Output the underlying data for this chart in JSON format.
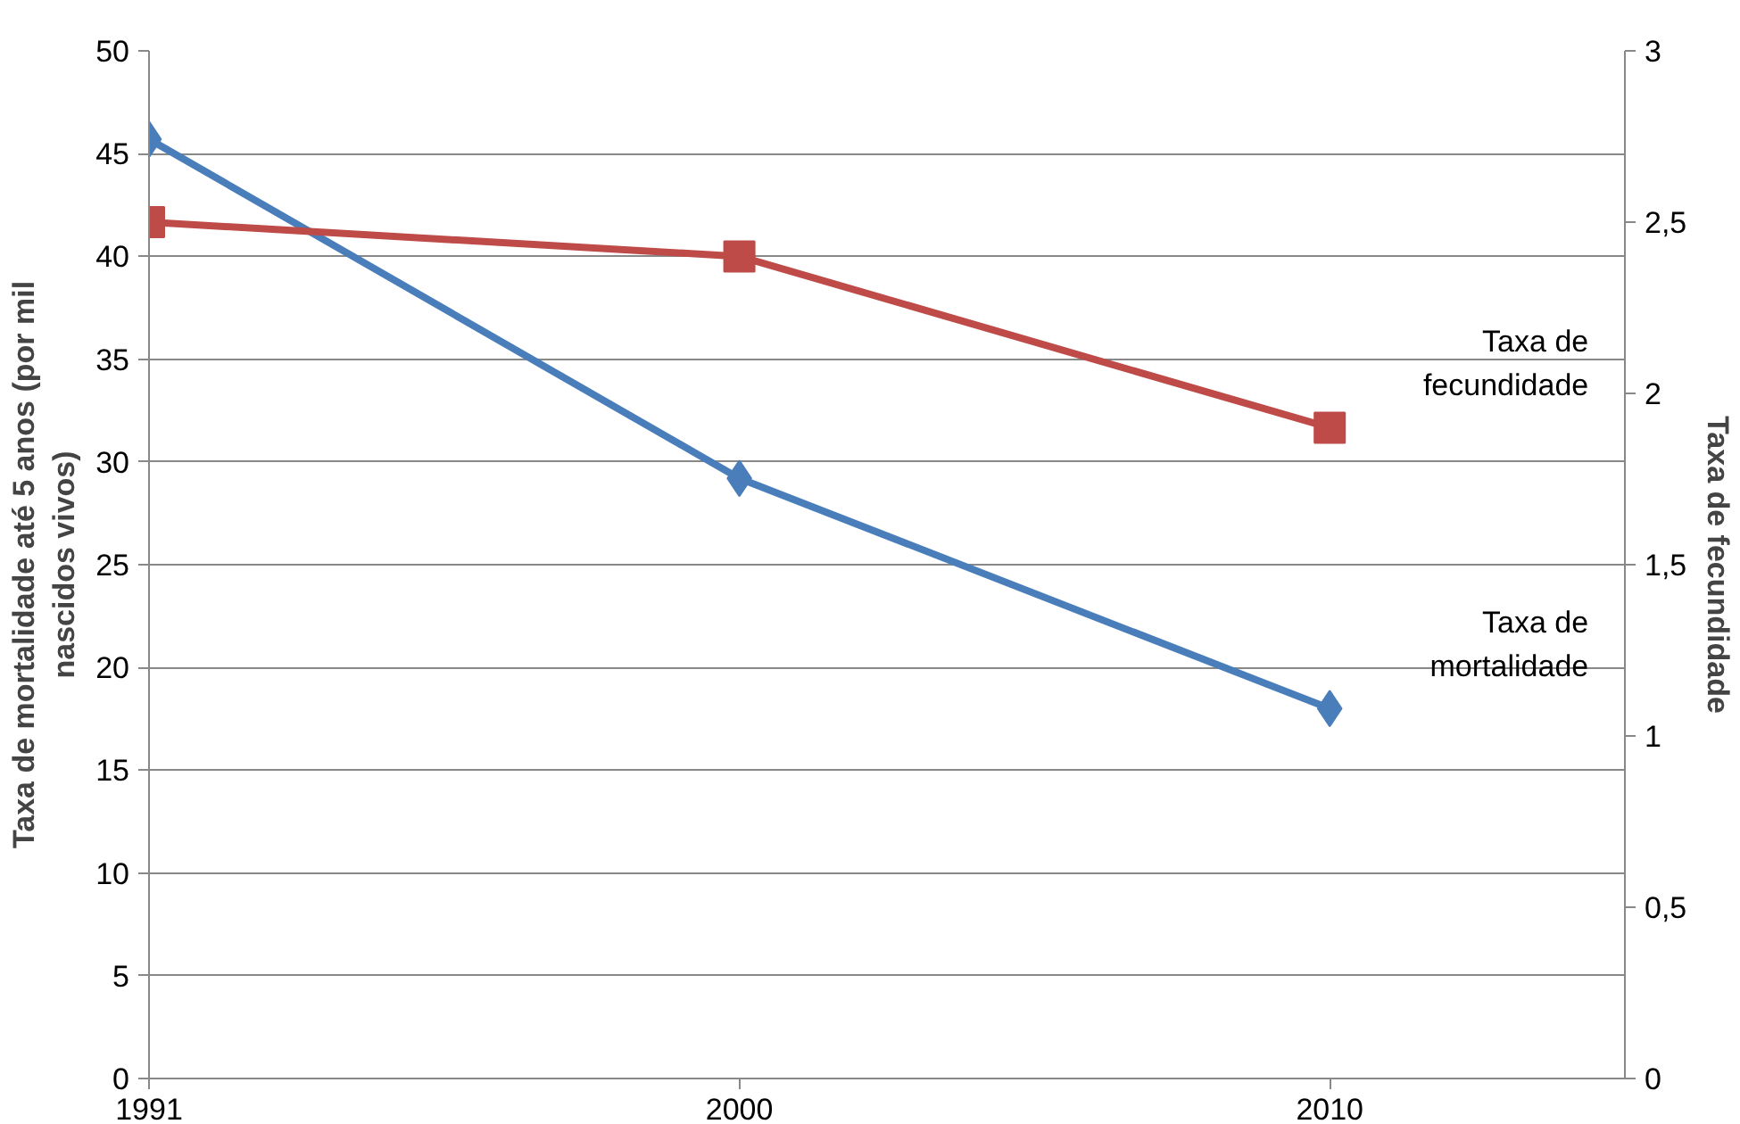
{
  "chart_data": {
    "type": "line",
    "categories": [
      "1991",
      "2000",
      "2010"
    ],
    "ylabel": "Taxa de mortalidade até 5 anos (por mil nascidos vivos)",
    "y2label": "Taxa de fecundidade",
    "series": [
      {
        "name": "Taxa de mortalidade",
        "color": "#4a7ebb",
        "values": [
          45.7,
          29.2,
          18.0
        ],
        "marker": "diamond"
      },
      {
        "name": "Taxa de fecundidade",
        "color": "#be4b48",
        "values": [
          2.5,
          2.4,
          1.9
        ],
        "marker": "square",
        "axis": "y2"
      }
    ],
    "ylim": [
      0,
      50
    ],
    "yticks": [
      0,
      5,
      10,
      15,
      20,
      25,
      30,
      35,
      40,
      45,
      50
    ],
    "y2lim": [
      0,
      3
    ],
    "y2ticks": [
      0,
      {
        "value": 0.5,
        "label": "0,5"
      },
      1,
      {
        "value": 1.5,
        "label": "1,5"
      },
      2,
      {
        "value": 2.5,
        "label": "2,5"
      },
      3
    ],
    "grid": "y",
    "line_style": "solid"
  }
}
